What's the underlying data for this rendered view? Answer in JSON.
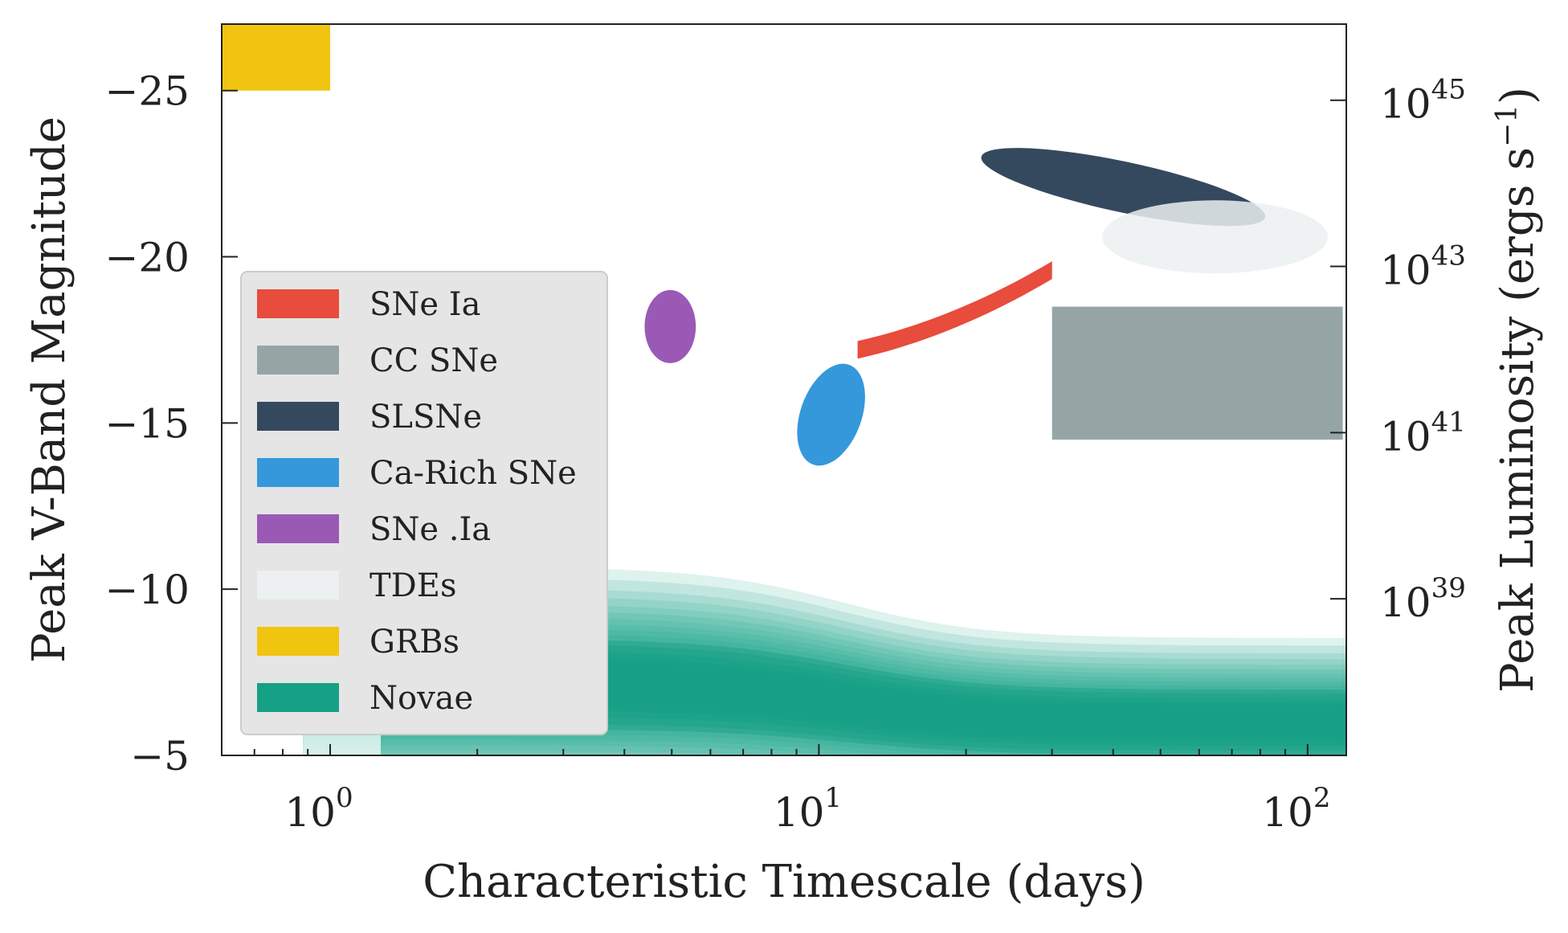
{
  "chart_data": {
    "type": "scatter",
    "description_kind": "region-plot",
    "x_axis": {
      "label": "Characteristic Timescale (days)",
      "scale": "log",
      "range": [
        0.6,
        120
      ],
      "major_ticks": [
        1,
        10,
        100
      ],
      "tick_labels": [
        {
          "base": "10",
          "exp": "0"
        },
        {
          "base": "10",
          "exp": "1"
        },
        {
          "base": "10",
          "exp": "2"
        }
      ]
    },
    "y_axis": {
      "label": "Peak V-Band Magnitude",
      "inverted": true,
      "range": [
        -5,
        -27
      ],
      "ticks": [
        -25,
        -20,
        -15,
        -10,
        -5
      ],
      "tick_labels": [
        "−25",
        "−20",
        "−15",
        "−10",
        "−5"
      ]
    },
    "y2_axis": {
      "label_main": "Peak Luminosity (ergs s",
      "label_sup": "−1",
      "label_end": ")",
      "scale": "log",
      "ticks_at_magnitude": [
        -25,
        -20,
        -15,
        -10
      ],
      "tick_labels": [
        {
          "base": "10",
          "exp": "45"
        },
        {
          "base": "10",
          "exp": "43"
        },
        {
          "base": "10",
          "exp": "41"
        },
        {
          "base": "10",
          "exp": "39"
        }
      ]
    },
    "grid": false,
    "legend_position": "lower-left",
    "series": [
      {
        "name": "SNe Ia",
        "color": "#e74c3c",
        "shape": "curved-band",
        "t_range": [
          12,
          30
        ],
        "mag_range": [
          -17.2,
          -19.6
        ]
      },
      {
        "name": "CC SNe",
        "color": "#95a5a6",
        "shape": "rectangle",
        "t_range": [
          30,
          120
        ],
        "mag_range": [
          -14.5,
          -18.5
        ]
      },
      {
        "name": "SLSNe",
        "color": "#34495e",
        "shape": "ellipse",
        "t_range": [
          22,
          80
        ],
        "mag_range": [
          -21,
          -23.2
        ]
      },
      {
        "name": "Ca-Rich SNe",
        "color": "#3498db",
        "shape": "ellipse",
        "t_range": [
          9.2,
          12.2
        ],
        "mag_range": [
          -13.7,
          -16.8
        ]
      },
      {
        "name": "SNe .Ia",
        "color": "#9b59b6",
        "shape": "ellipse",
        "t_range": [
          4.4,
          5.6
        ],
        "mag_range": [
          -16.8,
          -19
        ]
      },
      {
        "name": "TDEs",
        "color": "#ecf0f1",
        "shape": "ellipse",
        "t_range": [
          38,
          110
        ],
        "mag_range": [
          -19.5,
          -21.7
        ]
      },
      {
        "name": "GRBs",
        "color": "#f1c40f",
        "shape": "rectangle",
        "t_range": [
          0.6,
          1.0
        ],
        "mag_range": [
          -25,
          -27
        ]
      },
      {
        "name": "Novae",
        "color": "#16a085",
        "shape": "shaded-band",
        "t_range": [
          0.88,
          120
        ],
        "mag_range": [
          -5,
          -11
        ]
      }
    ]
  }
}
